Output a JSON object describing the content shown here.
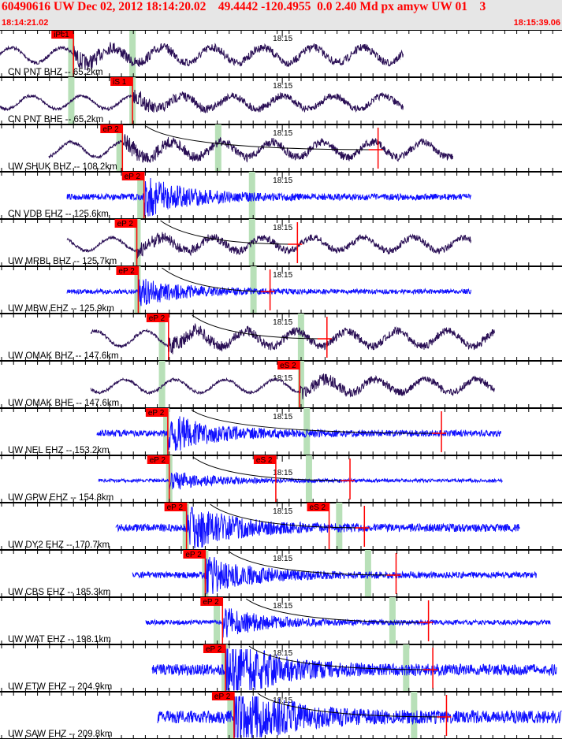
{
  "header": {
    "title": "60490616 UW Dec 02, 2012 18:14:20.02    49.4442 -120.4955  0.0 2.40 Md px amyw UW 01    3",
    "window_start": "18:14:21.02",
    "window_end": "18:15:39.06",
    "minute_label": "18:15",
    "window_seconds": 78.04,
    "minute_offset_s": 39.2
  },
  "colors": {
    "bb": "#2a0f55",
    "sp": "#1010ff",
    "pick": "#ff0000",
    "theory": "#b8e0b8"
  },
  "traces": [
    {
      "label": "CN PNT BHZ -- 65.2km",
      "type": "bb",
      "t0": 0,
      "t1": 56,
      "picks": [
        {
          "label": "iPc1",
          "t": 10.2
        }
      ],
      "green": [
        9.9,
        18.4
      ],
      "onset": 10.2,
      "amp": 14,
      "marker": null
    },
    {
      "label": "CN PNT BHE -- 65.2km",
      "type": "bb",
      "t0": 0,
      "t1": 56,
      "picks": [
        {
          "label": "iS 1",
          "t": 18.4
        }
      ],
      "green": [
        9.9,
        18.4
      ],
      "onset": 18.4,
      "amp": 12,
      "marker": null
    },
    {
      "label": "UW SHUK BHZ -- 108.2km",
      "type": "bb",
      "t0": 6.8,
      "t1": 62.9,
      "picks": [
        {
          "label": "eP 2",
          "t": 17
        }
      ],
      "green": [
        16.6,
        30.3
      ],
      "onset": 17,
      "amp": 14,
      "marker": 52.5
    },
    {
      "label": "CN VDB EHZ -- 125.6km",
      "type": "sp",
      "t0": 9.3,
      "t1": 65.4,
      "picks": [
        {
          "label": "eP 2",
          "t": 20
        }
      ],
      "green": [
        19.5,
        35
      ],
      "onset": 20,
      "amp": 4,
      "marker": null
    },
    {
      "label": "UW MRBL BHZ -- 125.7km",
      "type": "bb",
      "t0": 9.3,
      "t1": 65.4,
      "picks": [
        {
          "label": "eP 2",
          "t": 19
        }
      ],
      "green": [
        19.1,
        35
      ],
      "onset": 19,
      "amp": 12,
      "marker": 41.3
    },
    {
      "label": "UW MBW EHZ -- 125.9km",
      "type": "sp",
      "t0": 9.3,
      "t1": 65.4,
      "picks": [
        {
          "label": "eP 2",
          "t": 19.2
        }
      ],
      "green": [
        19.1,
        35.2
      ],
      "onset": 19.2,
      "amp": 3,
      "marker": 37.5
    },
    {
      "label": "UW OMAK BHZ -- 147.6km",
      "type": "bb",
      "t0": 12.6,
      "t1": 68.7,
      "picks": [
        {
          "label": "eP 2",
          "t": 23.4
        }
      ],
      "green": [
        22.5,
        41.8
      ],
      "onset": 23.4,
      "amp": 14,
      "marker": 45.4
    },
    {
      "label": "UW OMAK BHE -- 147.6km",
      "type": "bb",
      "t0": 12.6,
      "t1": 68.7,
      "picks": [
        {
          "label": "eS 2",
          "t": 41.6
        }
      ],
      "green": [
        22.5,
        41.8
      ],
      "onset": 41.6,
      "amp": 12,
      "marker": null
    },
    {
      "label": "UW NEL EHZ -- 153.2km",
      "type": "sp",
      "t0": 13.5,
      "t1": 69.6,
      "picks": [
        {
          "label": "eP 2",
          "t": 23.3
        }
      ],
      "green": [
        23.1,
        42.6
      ],
      "onset": 23.3,
      "amp": 4,
      "marker": 61.3
    },
    {
      "label": "UW GPW EHZ -- 154.8km",
      "type": "sp",
      "t0": 13.7,
      "t1": 69.8,
      "picks": [
        {
          "label": "eP 2",
          "t": 23.5
        },
        {
          "label": "eS 2",
          "t": 38.3
        }
      ],
      "green": [
        23.5,
        42.9
      ],
      "onset": 23.5,
      "amp": 2,
      "marker": 48.6
    },
    {
      "label": "UW DY2 EHZ -- 170.7km",
      "type": "sp",
      "t0": 16.1,
      "t1": 72.2,
      "picks": [
        {
          "label": "eP 2",
          "t": 25.9
        },
        {
          "label": "eS 2",
          "t": 45.7
        }
      ],
      "green": [
        25.8,
        47.1
      ],
      "onset": 25.9,
      "amp": 5,
      "marker": 50.6
    },
    {
      "label": "UW CBS EHZ -- 185.3km",
      "type": "sp",
      "t0": 18.4,
      "t1": 74.5,
      "picks": [
        {
          "label": "eP 2",
          "t": 28.5
        }
      ],
      "green": [
        28.5,
        51.1
      ],
      "onset": 28.5,
      "amp": 4,
      "marker": 55
    },
    {
      "label": "UW WAT EHZ -- 198.1km",
      "type": "sp",
      "t0": 20.2,
      "t1": 76.4,
      "picks": [
        {
          "label": "eP 2",
          "t": 30.9
        }
      ],
      "green": [
        30.1,
        54.5
      ],
      "onset": 30.9,
      "amp": 3,
      "marker": 59.5
    },
    {
      "label": "UW ETW EHZ -- 204.9km",
      "type": "sp",
      "t0": 21.1,
      "t1": 77.3,
      "picks": [
        {
          "label": "eP 2",
          "t": 31.3
        }
      ],
      "green": [
        31.2,
        56.4
      ],
      "onset": 31.3,
      "amp": 7,
      "marker": 60.1
    },
    {
      "label": "UW SAW EHZ -- 209.8km",
      "type": "sp",
      "t0": 21.9,
      "t1": 78,
      "picks": [
        {
          "label": "eP 2",
          "t": 32.5
        }
      ],
      "green": [
        32,
        57.5
      ],
      "onset": 32.5,
      "amp": 8,
      "marker": 62
    }
  ]
}
